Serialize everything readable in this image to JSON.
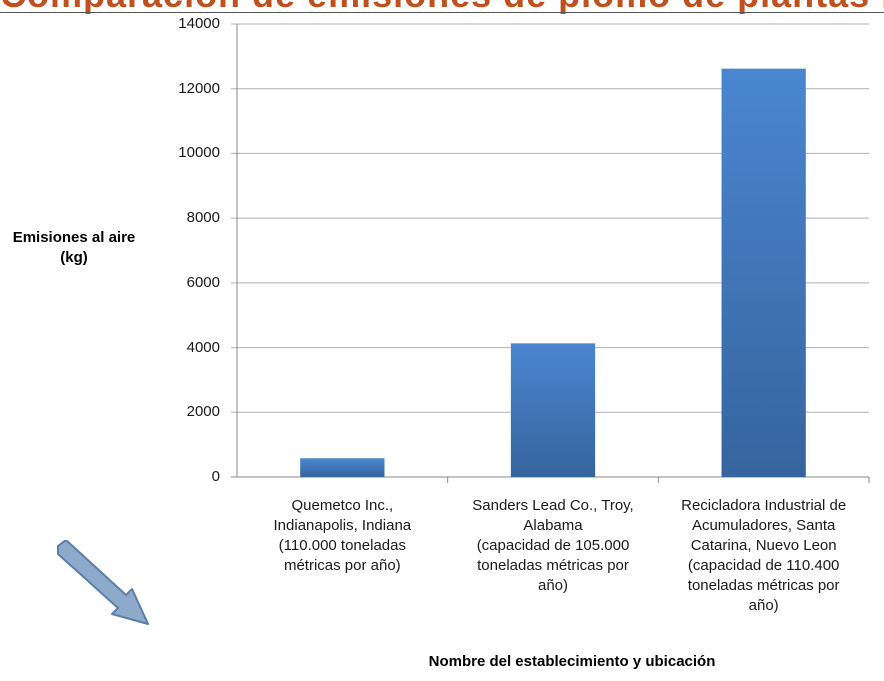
{
  "chart_data": {
    "type": "bar",
    "categories": [
      "Quemetco Inc., Indianapolis, Indiana (110.000 toneladas métricas por año)",
      "Sanders Lead Co., Troy, Alabama (capacidad de 105.000 toneladas métricas por año)",
      "Recicladora Industrial de Acumuladores, Santa Catarina, Nuevo Leon (capacidad de 110.400 toneladas métricas por año)"
    ],
    "category_lines": [
      [
        "Quemetco Inc.,",
        "Indianapolis, Indiana",
        "(110.000 toneladas",
        "métricas por año)"
      ],
      [
        "Sanders Lead Co., Troy,",
        "Alabama",
        "(capacidad de 105.000",
        "toneladas métricas por",
        "año)"
      ],
      [
        "Recicladora Industrial de",
        "Acumuladores, Santa",
        "Catarina, Nuevo Leon",
        "(capacidad de 110.400",
        "toneladas métricas por",
        "año)"
      ]
    ],
    "values": [
      580,
      4130,
      12620
    ],
    "ylabel_lines": [
      "Emisiones al aire",
      "(kg)"
    ],
    "xlabel": "Nombre del  establecimiento y ubicación",
    "ylim": [
      0,
      14000
    ],
    "yticks": [
      0,
      2000,
      4000,
      6000,
      8000,
      10000,
      12000,
      14000
    ],
    "grid": true,
    "bar_color": "#4f81bd"
  },
  "colors": {
    "bar_top": "#4a86d0",
    "bar_bottom": "#36649e",
    "grid": "#b0b0b0",
    "arrow_fill": "#8eaacb",
    "arrow_stroke": "#5b7fa8",
    "header_text": "#c0501e"
  }
}
